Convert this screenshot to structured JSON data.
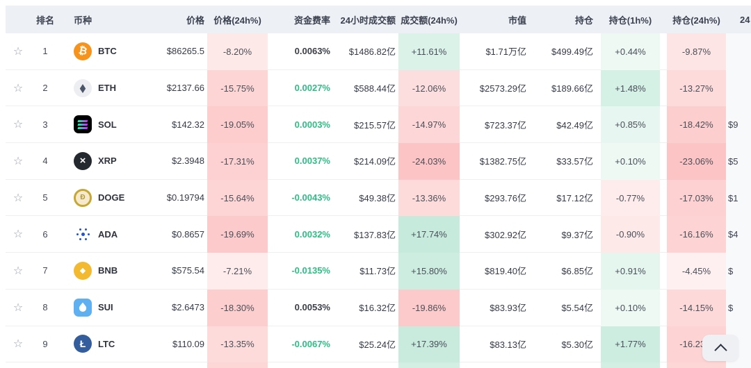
{
  "table": {
    "columns": {
      "star": "",
      "rank": "排名",
      "coin": "币种",
      "price": "价格",
      "price_chg": "价格(24h%)",
      "funding": "资金费率",
      "volume": "24小时成交额",
      "vol_chg": "成交额(24h%)",
      "mcap": "市值",
      "oi": "持仓",
      "oi_1h": "持仓(1h%)",
      "oi_24h": "持仓(24h%)",
      "next": "24"
    },
    "rows": [
      {
        "rank": "1",
        "symbol": "BTC",
        "price": "$86265.5",
        "price_chg": "-8.20%",
        "funding": "0.0063%",
        "funding_color": "dark",
        "volume": "$1486.82亿",
        "vol_chg": "+11.61%",
        "mcap": "$1.71万亿",
        "oi": "$499.49亿",
        "oi_1h": "+0.44%",
        "oi_24h": "-9.87%",
        "next": ""
      },
      {
        "rank": "2",
        "symbol": "ETH",
        "price": "$2137.66",
        "price_chg": "-15.75%",
        "funding": "0.0027%",
        "funding_color": "green",
        "volume": "$588.44亿",
        "vol_chg": "-12.06%",
        "mcap": "$2573.29亿",
        "oi": "$189.66亿",
        "oi_1h": "+1.48%",
        "oi_24h": "-13.27%",
        "next": ""
      },
      {
        "rank": "3",
        "symbol": "SOL",
        "price": "$142.32",
        "price_chg": "-19.05%",
        "funding": "0.0003%",
        "funding_color": "green",
        "volume": "$215.57亿",
        "vol_chg": "-14.97%",
        "mcap": "$723.37亿",
        "oi": "$42.49亿",
        "oi_1h": "+0.85%",
        "oi_24h": "-18.42%",
        "next": "$9"
      },
      {
        "rank": "4",
        "symbol": "XRP",
        "price": "$2.3948",
        "price_chg": "-17.31%",
        "funding": "0.0037%",
        "funding_color": "green",
        "volume": "$214.09亿",
        "vol_chg": "-24.03%",
        "mcap": "$1382.75亿",
        "oi": "$33.57亿",
        "oi_1h": "+0.10%",
        "oi_24h": "-23.06%",
        "next": "$5"
      },
      {
        "rank": "5",
        "symbol": "DOGE",
        "price": "$0.19794",
        "price_chg": "-15.64%",
        "funding": "-0.0043%",
        "funding_color": "green",
        "volume": "$49.38亿",
        "vol_chg": "-13.36%",
        "mcap": "$293.76亿",
        "oi": "$17.12亿",
        "oi_1h": "-0.77%",
        "oi_24h": "-17.03%",
        "next": "$1"
      },
      {
        "rank": "6",
        "symbol": "ADA",
        "price": "$0.8657",
        "price_chg": "-19.69%",
        "funding": "0.0032%",
        "funding_color": "green",
        "volume": "$137.83亿",
        "vol_chg": "+17.74%",
        "mcap": "$302.92亿",
        "oi": "$9.37亿",
        "oi_1h": "-0.90%",
        "oi_24h": "-16.16%",
        "next": "$4"
      },
      {
        "rank": "7",
        "symbol": "BNB",
        "price": "$575.54",
        "price_chg": "-7.21%",
        "funding": "-0.0135%",
        "funding_color": "green",
        "volume": "$11.73亿",
        "vol_chg": "+15.80%",
        "mcap": "$819.40亿",
        "oi": "$6.85亿",
        "oi_1h": "+0.91%",
        "oi_24h": "-4.45%",
        "next": "$"
      },
      {
        "rank": "8",
        "symbol": "SUI",
        "price": "$2.6473",
        "price_chg": "-18.30%",
        "funding": "0.0053%",
        "funding_color": "dark",
        "volume": "$16.32亿",
        "vol_chg": "-19.86%",
        "mcap": "$83.93亿",
        "oi": "$5.54亿",
        "oi_1h": "+0.10%",
        "oi_24h": "-14.15%",
        "next": "$"
      },
      {
        "rank": "9",
        "symbol": "LTC",
        "price": "$110.09",
        "price_chg": "-13.35%",
        "funding": "-0.0067%",
        "funding_color": "green",
        "volume": "$25.24亿",
        "vol_chg": "+17.39%",
        "mcap": "$83.13亿",
        "oi": "$5.30亿",
        "oi_1h": "+1.77%",
        "oi_24h": "-16.23%",
        "next": ""
      }
    ],
    "partial_row_bands": {
      "price_chg": "red",
      "vol_chg": "green",
      "oi_1h": "green",
      "oi_24h": "red"
    }
  },
  "icons": {
    "favorite_star": "☆",
    "btc_glyph": "₿",
    "eth_glyph": "◆",
    "xrp_glyph": "×",
    "doge_glyph": "Ð",
    "bnb_glyph": "◆",
    "ltc_glyph": "Ł"
  },
  "colors": {
    "up_green": "#2ebd85",
    "down_red": "#f64646",
    "band_green_rgb": "34,177,120",
    "band_red_rgb": "246,70,70",
    "header_bg": "#edf0f5",
    "funding_dark": "#3b3f48"
  }
}
